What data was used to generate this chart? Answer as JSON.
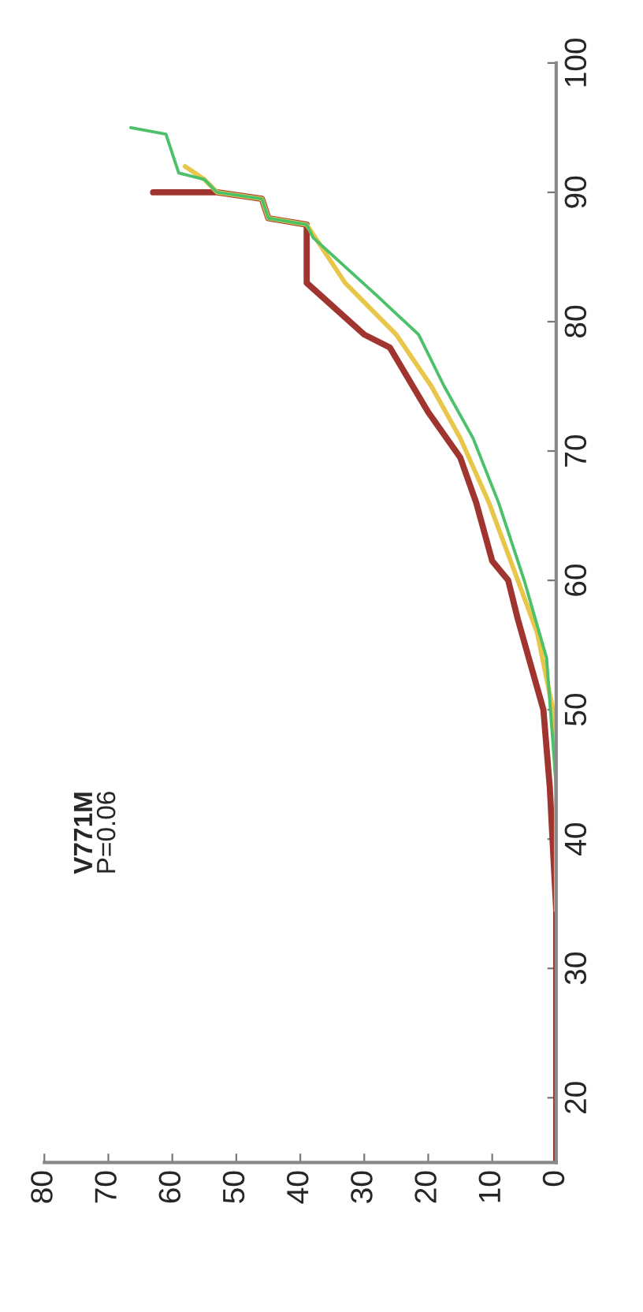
{
  "chart_data": {
    "type": "line",
    "annotations": [
      "V771M",
      "P=0.06"
    ],
    "series": [
      {
        "color": "#a0342f",
        "x": [
          0,
          0,
          1,
          2,
          6,
          7.5,
          10,
          12.5,
          15,
          20,
          26,
          30,
          39,
          39,
          45,
          46,
          53,
          63
        ],
        "values": [
          15,
          34.5,
          44,
          50,
          57,
          60,
          61.5,
          66,
          69.5,
          73,
          78,
          79,
          83,
          87.5,
          88,
          89.5,
          90,
          90
        ]
      },
      {
        "color": "#e8c64a",
        "x": [
          0,
          0,
          0.5,
          3,
          6,
          10.5,
          15,
          19.5,
          25,
          33,
          39,
          45,
          46,
          53,
          55,
          58
        ],
        "values": [
          34.5,
          45,
          50,
          56,
          60,
          66,
          71,
          75,
          79,
          83,
          87.5,
          88,
          89.5,
          90,
          91,
          92
        ]
      },
      {
        "color": "#4cc16a",
        "x": [
          0,
          0,
          1.5,
          5,
          9,
          13,
          17.5,
          21.5,
          28,
          38,
          39,
          45,
          46,
          53,
          55,
          59,
          61,
          66.5
        ],
        "values": [
          40,
          44,
          54,
          60,
          66,
          71,
          75,
          79,
          82,
          86.5,
          87.5,
          88,
          89.5,
          90,
          91,
          91.5,
          94.5,
          95
        ]
      }
    ],
    "xlim": [
      80,
      0
    ],
    "xticks": [
      0,
      10,
      20,
      30,
      40,
      50,
      60,
      70,
      80
    ],
    "ylim": [
      15,
      100
    ],
    "yticks": [
      20,
      30,
      40,
      50,
      60,
      70,
      80,
      90,
      100
    ],
    "grid": false,
    "legend": false
  }
}
